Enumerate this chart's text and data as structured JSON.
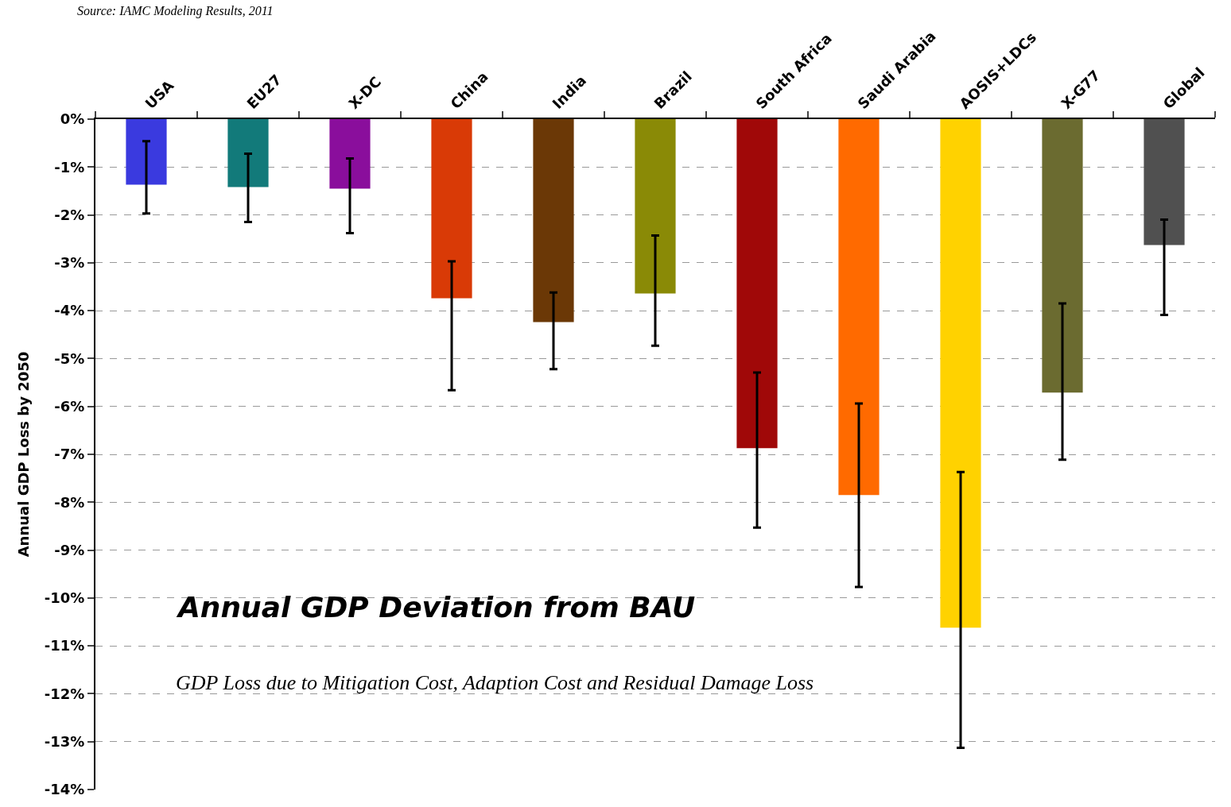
{
  "chart_data": {
    "type": "bar",
    "title": "Annual GDP Deviation from BAU",
    "subtitle": "GDP Loss due to Mitigation Cost, Adaption Cost and Residual Damage Loss",
    "ylabel": "Annual GDP Loss by 2050",
    "annotations": [
      "Source: IAMC Modeling Results, 2011"
    ],
    "categories": [
      "USA",
      "EU27",
      "X-DC",
      "China",
      "India",
      "Brazil",
      "South Africa",
      "Saudi Arabia",
      "AOSIS+LDCs",
      "X-G77",
      "Global"
    ],
    "values": [
      -1.37,
      -1.42,
      -1.45,
      -3.74,
      -4.24,
      -3.64,
      -6.87,
      -7.85,
      -10.62,
      -5.71,
      -2.63
    ],
    "errors": [
      [
        -1.97,
        -0.46
      ],
      [
        -2.15,
        -0.72
      ],
      [
        -2.38,
        -0.82
      ],
      [
        -5.66,
        -2.97
      ],
      [
        -5.22,
        -3.62
      ],
      [
        -4.73,
        -2.43
      ],
      [
        -8.53,
        -5.29
      ],
      [
        -9.77,
        -5.94
      ],
      [
        -13.13,
        -7.37
      ],
      [
        -7.11,
        -3.85
      ],
      [
        -4.09,
        -2.1
      ]
    ],
    "colors": [
      "#3a3adf",
      "#127a7a",
      "#8a0e9c",
      "#d93a06",
      "#6b3806",
      "#8a8a06",
      "#a00808",
      "#ff6a00",
      "#ffd200",
      "#6b6b30",
      "#505050"
    ],
    "ylim": [
      -14,
      0
    ],
    "yticks": [
      {
        "value": 0,
        "label": "0%"
      },
      {
        "value": -1,
        "label": "-1%"
      },
      {
        "value": -2,
        "label": "-2%"
      },
      {
        "value": -3,
        "label": "-3%"
      },
      {
        "value": -4,
        "label": "-4%"
      },
      {
        "value": -5,
        "label": "-5%"
      },
      {
        "value": -6,
        "label": "-6%"
      },
      {
        "value": -7,
        "label": "-7%"
      },
      {
        "value": -8,
        "label": "-8%"
      },
      {
        "value": -9,
        "label": "-9%"
      },
      {
        "value": -10,
        "label": "-10%"
      },
      {
        "value": -11,
        "label": "-11%"
      },
      {
        "value": -12,
        "label": "-12%"
      },
      {
        "value": -13,
        "label": "-13%"
      },
      {
        "value": -14,
        "label": "-14%"
      }
    ],
    "grid": "y"
  }
}
